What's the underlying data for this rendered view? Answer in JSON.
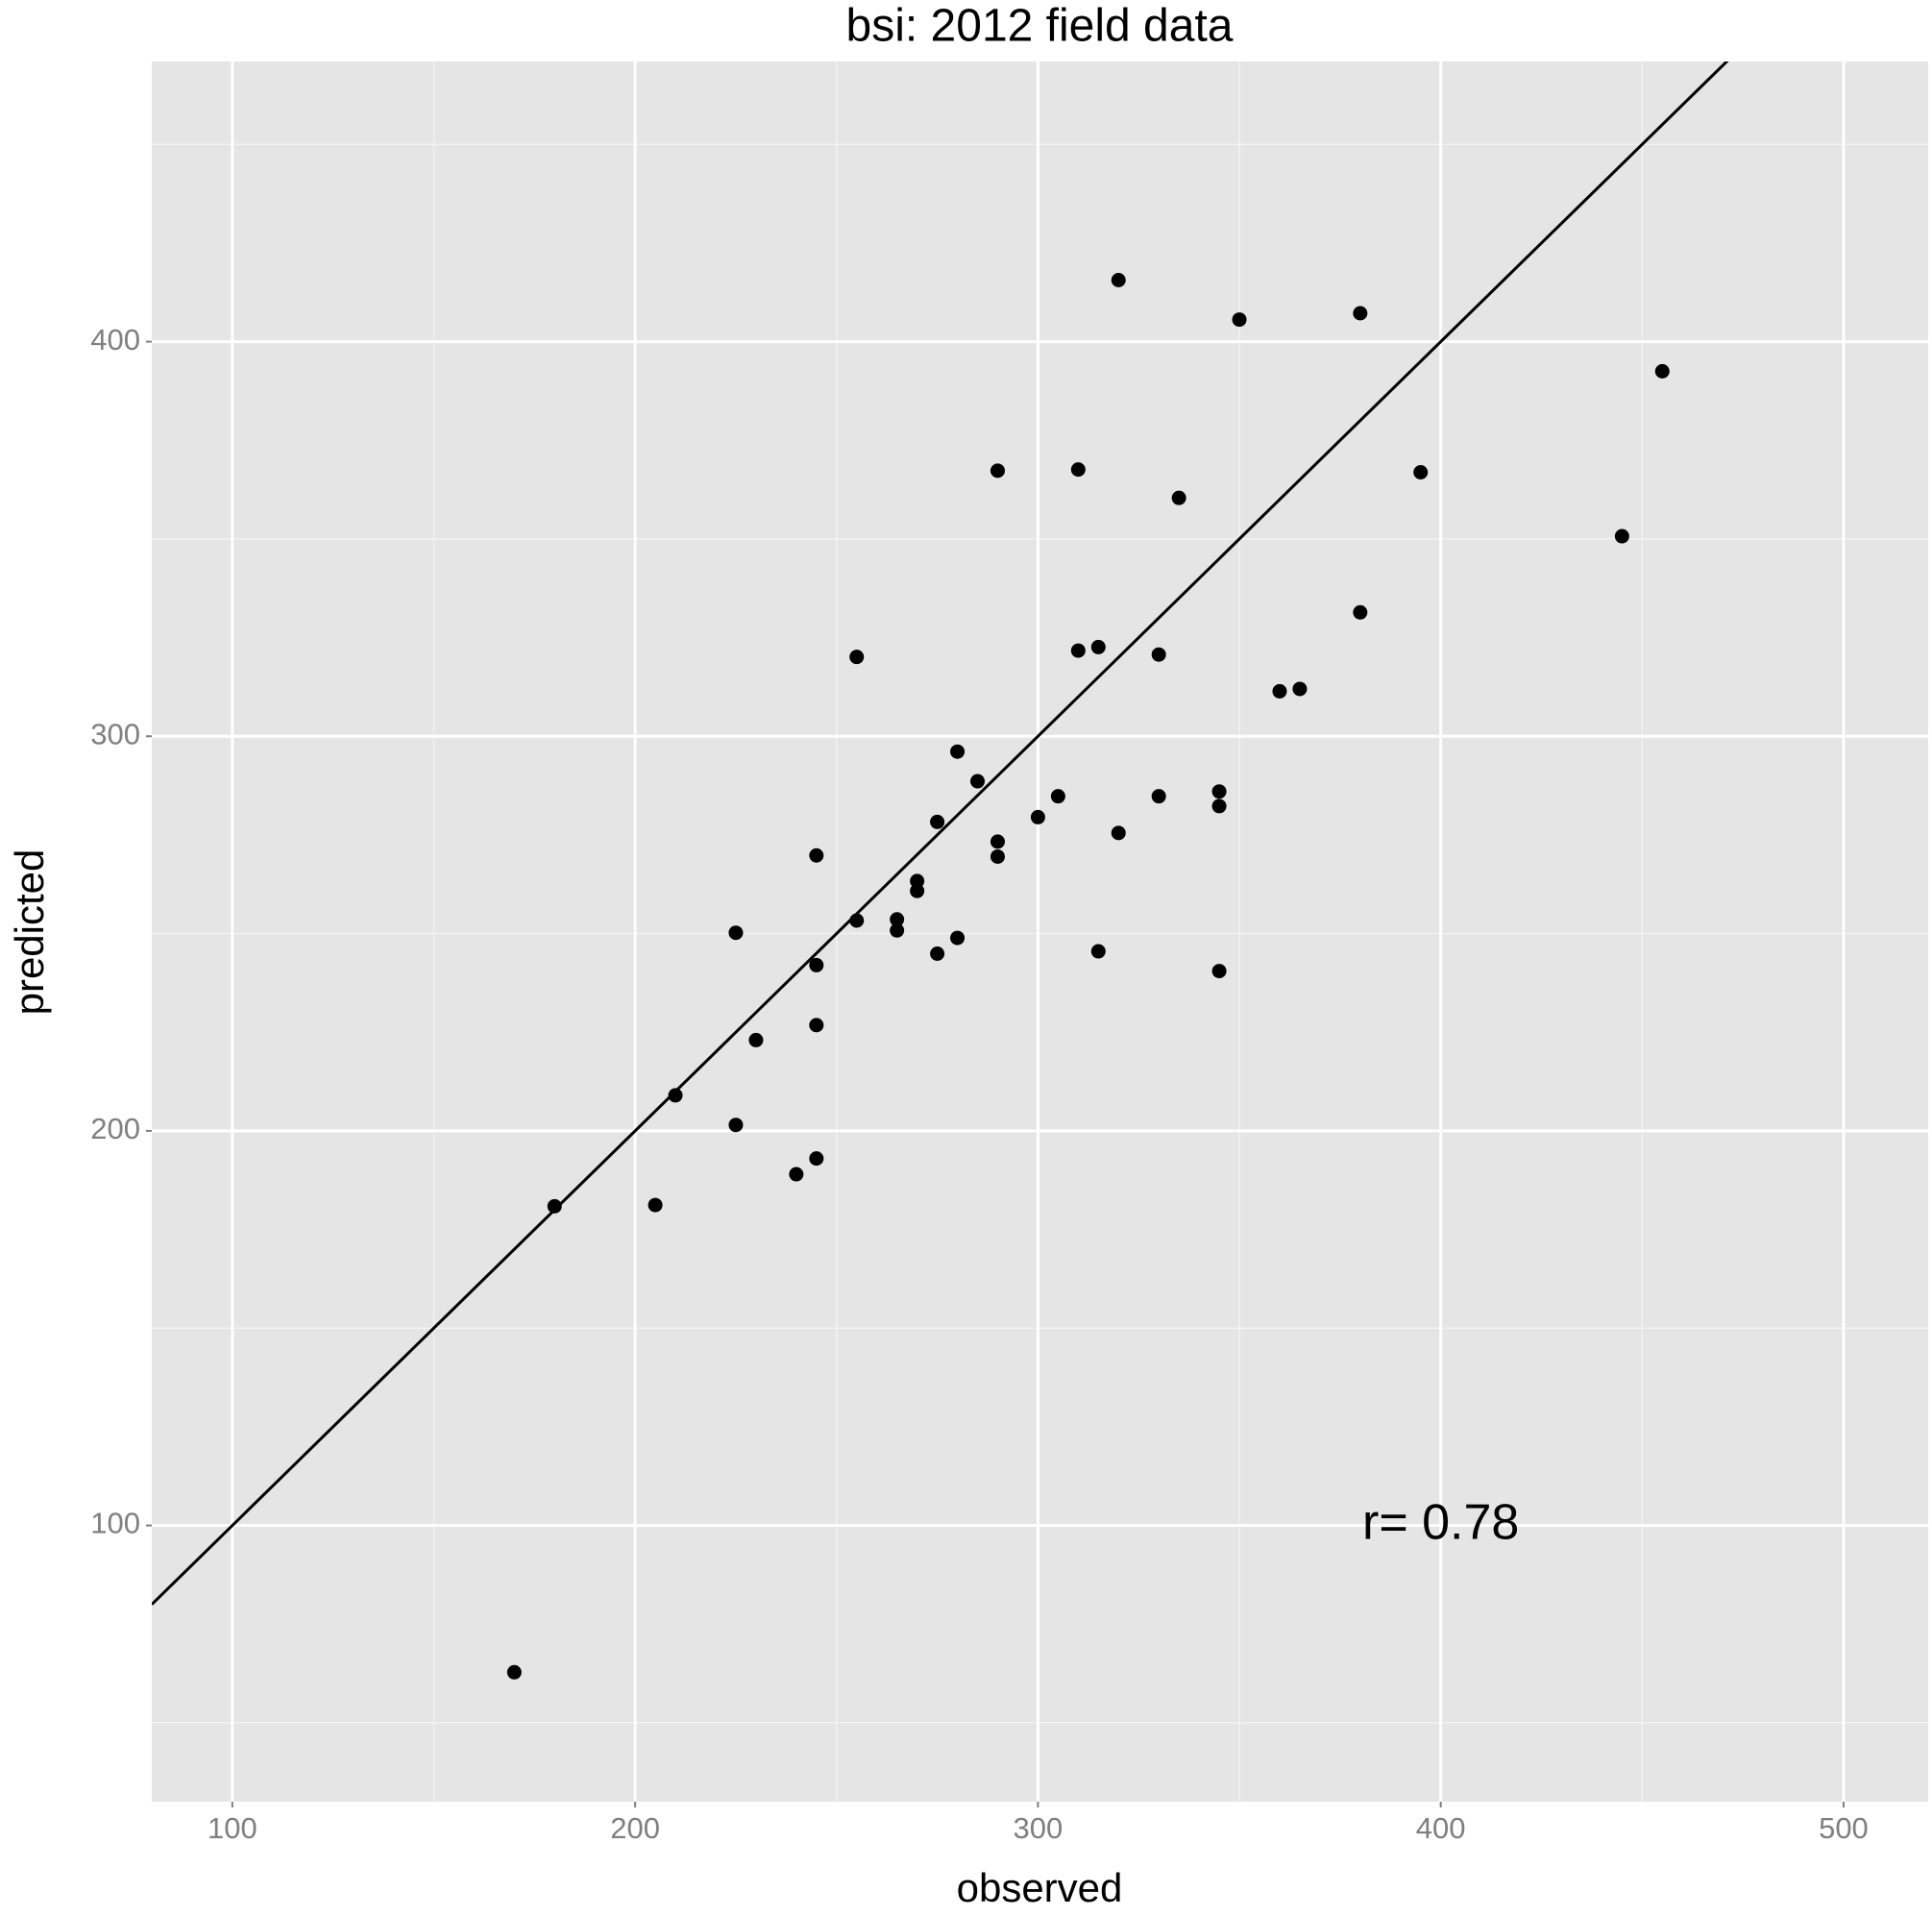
{
  "chart_data": {
    "type": "scatter",
    "title": "bsi: 2012 field data",
    "x_label": "observed",
    "y_label": "predicted",
    "series": [
      {
        "color": "#000000",
        "x": [
          170,
          180,
          205,
          210,
          225,
          225,
          230,
          240,
          245,
          245,
          245,
          245,
          255,
          255,
          265,
          265,
          270,
          270,
          275,
          275,
          280,
          280,
          285,
          290,
          290,
          290,
          300,
          305,
          310,
          310,
          315,
          315,
          320,
          320,
          330,
          330,
          335,
          345,
          345,
          345,
          350,
          360,
          365,
          380,
          380,
          395,
          445,
          455
        ],
        "values": [
          62.8,
          180.9,
          181.2,
          209,
          201.5,
          250.2,
          223,
          189,
          193,
          226.8,
          242,
          269.8,
          253.3,
          320.1,
          253.6,
          250.8,
          263.3,
          260.8,
          278.3,
          244.9,
          248.9,
          296.1,
          288.6,
          273.3,
          269.5,
          367.3,
          279.5,
          284.8,
          321.7,
          367.6,
          322.6,
          245.5,
          275.5,
          415.6,
          284.8,
          320.7,
          360.4,
          286,
          282.3,
          240.5,
          405.6,
          311.4,
          312,
          331.4,
          407.2,
          366.9,
          350.7,
          392.5
        ]
      }
    ],
    "reference_line": {
      "slope": 1,
      "intercept": 0,
      "color": "#000000"
    },
    "annotation": {
      "text": "r= 0.78",
      "x": 400,
      "y": 100
    },
    "xlim": [
      80,
      521
    ],
    "ylim": [
      30,
      471
    ],
    "xticks": [
      100,
      200,
      300,
      400,
      500
    ],
    "yticks": [
      100,
      200,
      300,
      400
    ],
    "xminor_ticks": [
      150,
      250,
      350,
      450
    ],
    "yminor_ticks": [
      50,
      150,
      250,
      350,
      450
    ],
    "grid": true
  }
}
